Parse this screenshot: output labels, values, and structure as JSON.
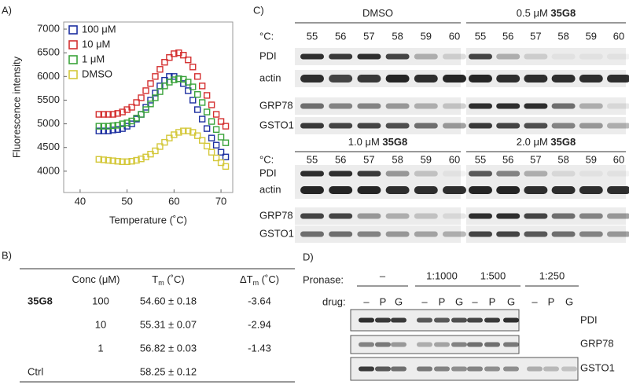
{
  "panels": [
    "A)",
    "B)",
    "C)",
    "D)"
  ],
  "chart_data": {
    "type": "scatter",
    "x": [
      44,
      45,
      46,
      47,
      48,
      49,
      50,
      51,
      52,
      53,
      54,
      55,
      56,
      57,
      58,
      59,
      60,
      61,
      62,
      63,
      64,
      65,
      66,
      67,
      68,
      69,
      70,
      71
    ],
    "xlabel": "Temperature (˚C)",
    "ylabel": "Fluorescence intensity",
    "xlim": [
      36.5,
      72.5
    ],
    "ylim": [
      3550,
      7150
    ],
    "xticks": [
      40,
      50,
      60,
      70
    ],
    "yticks": [
      4000,
      4500,
      5000,
      5500,
      6000,
      6500,
      7000
    ],
    "legend": "upper left",
    "series": [
      {
        "name": "100 μM",
        "color": "#1c2fa0",
        "values": [
          4850,
          4850,
          4850,
          4870,
          4880,
          4900,
          4950,
          5000,
          5100,
          5200,
          5350,
          5500,
          5650,
          5800,
          5920,
          6000,
          6000,
          5950,
          5850,
          5700,
          5500,
          5300,
          5100,
          4900,
          4700,
          4550,
          4400,
          4300
        ]
      },
      {
        "name": "10 μM",
        "color": "#d43030",
        "values": [
          5200,
          5200,
          5200,
          5200,
          5220,
          5250,
          5300,
          5350,
          5450,
          5550,
          5700,
          5850,
          6000,
          6150,
          6300,
          6400,
          6480,
          6500,
          6450,
          6350,
          6200,
          6000,
          5800,
          5600,
          5400,
          5200,
          5050,
          4950
        ]
      },
      {
        "name": "1 μM",
        "color": "#3aa33a",
        "values": [
          4950,
          4950,
          4950,
          4960,
          4970,
          5000,
          5020,
          5060,
          5120,
          5200,
          5300,
          5420,
          5550,
          5680,
          5800,
          5880,
          5930,
          5950,
          5940,
          5880,
          5780,
          5620,
          5450,
          5250,
          5050,
          4880,
          4720,
          4600
        ]
      },
      {
        "name": "DMSO",
        "color": "#d4c83a",
        "values": [
          4250,
          4240,
          4230,
          4220,
          4210,
          4200,
          4200,
          4210,
          4230,
          4260,
          4300,
          4360,
          4430,
          4520,
          4610,
          4700,
          4770,
          4820,
          4850,
          4850,
          4820,
          4750,
          4650,
          4530,
          4400,
          4280,
          4180,
          4100
        ]
      }
    ]
  },
  "table": {
    "headers": [
      {
        "text": "Conc (μM)"
      },
      {
        "text": "T",
        "sub": "m",
        "after": " (˚C)"
      },
      {
        "text": "ΔT",
        "sub": "m",
        "after": " (˚C)"
      }
    ],
    "rows": [
      {
        "compound": "35G8",
        "conc": "100",
        "tm": "54.60 ± 0.18",
        "dtm": "-3.64"
      },
      {
        "conc": "10",
        "tm": "55.31 ± 0.07",
        "dtm": "-2.94"
      },
      {
        "conc": "1",
        "tm": "56.82 ± 0.03",
        "dtm": "-1.43"
      },
      {
        "compound": "Ctrl",
        "tm": "58.25 ± 0.12"
      }
    ]
  },
  "blots_c": {
    "temp_label": "°C:",
    "temps": [
      "55",
      "56",
      "57",
      "58",
      "59",
      "60"
    ],
    "rows": [
      "PDI",
      "actin",
      "GRP78",
      "GSTO1"
    ],
    "conditions": [
      {
        "prefix": "DMSO"
      },
      {
        "prefix": "0.5 μM ",
        "drug": "35G8"
      },
      {
        "prefix": "1.0 μM ",
        "drug": "35G8"
      },
      {
        "prefix": "2.0 μM ",
        "drug": "35G8"
      }
    ]
  },
  "blots_d": {
    "pronase_label": "Pronase:",
    "pronase": [
      "–",
      "1:1000",
      "1:500",
      "1:250"
    ],
    "drug_label": "drug:",
    "drugs": [
      "–",
      "P",
      "G"
    ],
    "rows": [
      "PDI",
      "GRP78",
      "GSTO1"
    ]
  }
}
